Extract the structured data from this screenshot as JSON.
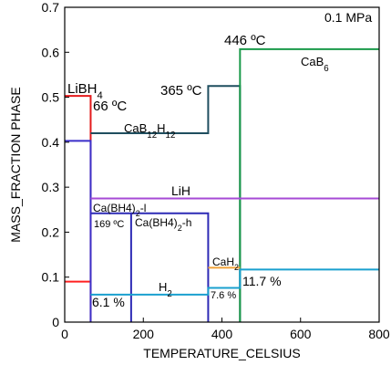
{
  "chart_data": {
    "type": "line",
    "xlabel": "TEMPERATURE_CELSIUS",
    "ylabel": "MASS_FRACTION PHASE",
    "xlim": [
      0,
      800
    ],
    "ylim": [
      0,
      0.7
    ],
    "xticks": [
      0,
      200,
      400,
      600,
      800
    ],
    "yticks": [
      0,
      0.1,
      0.2,
      0.3,
      0.4,
      0.5,
      0.6,
      0.7
    ],
    "xtick_labels": [
      "0",
      "200",
      "400",
      "600",
      "800"
    ],
    "ytick_labels": [
      "0",
      "0.1",
      "0.2",
      "0.3",
      "0.4",
      "0.5",
      "0.6",
      "0.7"
    ],
    "grid": false,
    "legend": "none",
    "series": [
      {
        "color": "#e41a1c",
        "x": [
          0,
          66,
          66
        ],
        "y": [
          0.503,
          0.503,
          0
        ]
      },
      {
        "color": "#ff2020",
        "x": [
          0,
          66
        ],
        "y": [
          0.09,
          0.09
        ]
      },
      {
        "color": "#3b2fc9",
        "x": [
          0,
          66,
          66
        ],
        "y": [
          0.403,
          0.403,
          0
        ]
      },
      {
        "color": "#1f4e5f",
        "x": [
          66,
          365,
          365,
          446,
          446
        ],
        "y": [
          0.42,
          0.42,
          0.525,
          0.525,
          0
        ]
      },
      {
        "color": "#1a9a4a",
        "x": [
          446,
          446,
          800
        ],
        "y": [
          0,
          0.607,
          0.607
        ]
      },
      {
        "color": "#a64ad6",
        "x": [
          66,
          800
        ],
        "y": [
          0.275,
          0.275
        ]
      },
      {
        "color": "#2d2ab5",
        "x": [
          66,
          365,
          365
        ],
        "y": [
          0.242,
          0.242,
          0
        ]
      },
      {
        "color": "#2d2ab5",
        "x": [
          169,
          169
        ],
        "y": [
          0,
          0.242
        ]
      },
      {
        "color": "#1aa0cf",
        "x": [
          66,
          365,
          365,
          446,
          446,
          800
        ],
        "y": [
          0.061,
          0.061,
          0.076,
          0.076,
          0.117,
          0.117
        ]
      },
      {
        "color": "#f0a23a",
        "x": [
          365,
          446
        ],
        "y": [
          0.121,
          0.121
        ]
      }
    ],
    "annotations": {
      "pressure": "0.1 MPa",
      "libh4": "LiBH4",
      "t66": "66 ºC",
      "cab12h12": "CaB12H12",
      "t365": "365 ºC",
      "t446": "446 ºC",
      "cab6": "CaB6",
      "lih": "LiH",
      "cabh42_l": "Ca(BH4)2-l",
      "t169": "169 ºC",
      "cabh42_h": "Ca(BH4)2-h",
      "cah2": "CaH2",
      "h2": "H2",
      "p61": "6.1 %",
      "p76": "7.6 %",
      "p117": "11.7 %"
    }
  }
}
